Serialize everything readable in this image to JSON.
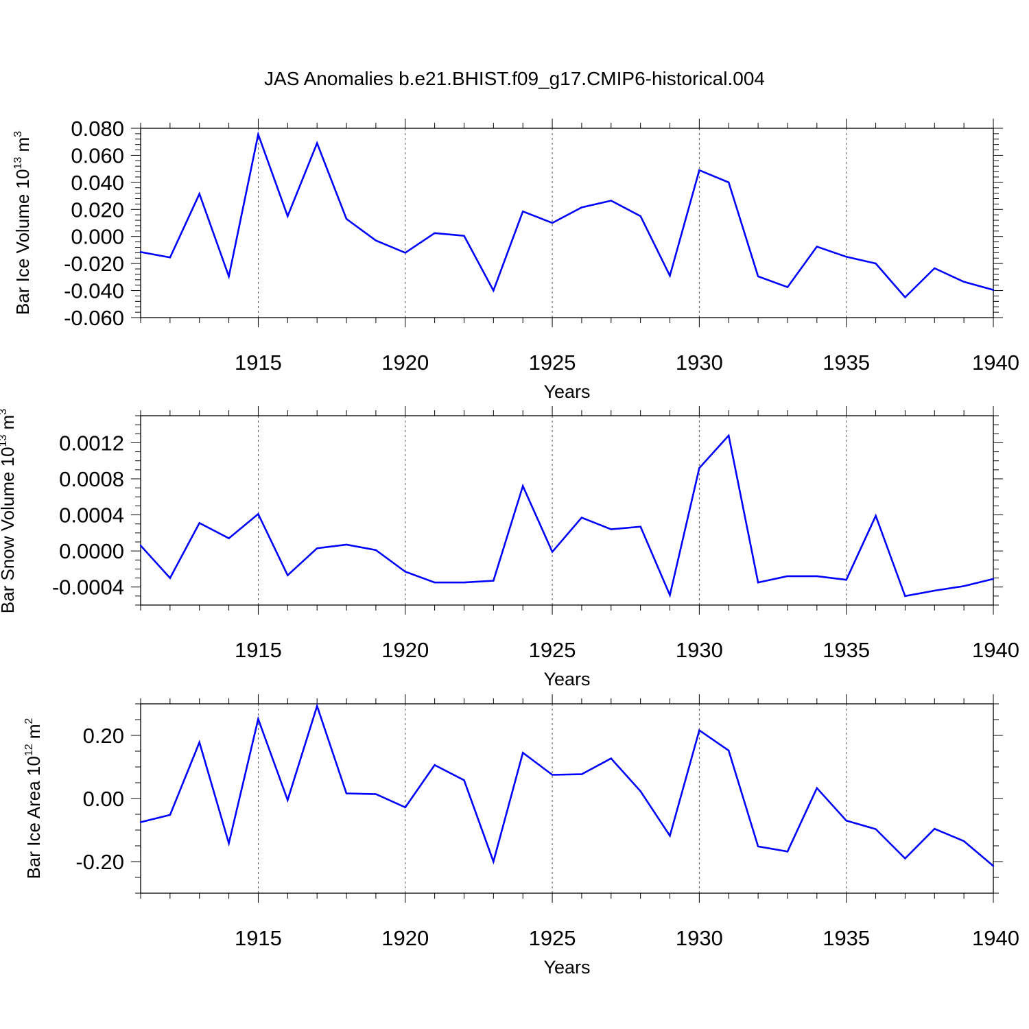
{
  "chart_data": [
    {
      "type": "line",
      "title": "JAS Anomalies b.e21.BHIST.f09_g17.CMIP6-historical.004",
      "xlabel": "Years",
      "ylabel": "Bar Ice Volume 10",
      "ylabel_sup1": "13",
      "ylabel_unit": " m",
      "ylabel_sup2": "3",
      "xlim": [
        1911,
        1940
      ],
      "ylim": [
        -0.06,
        0.08
      ],
      "yticks": [
        -0.06,
        -0.04,
        -0.02,
        0.0,
        0.02,
        0.04,
        0.06,
        0.08
      ],
      "ytick_labels": [
        "-0.060",
        "-0.040",
        "-0.020",
        "0.000",
        "0.020",
        "0.040",
        "0.060",
        "0.080"
      ],
      "yminor": 0.004,
      "xticks": [
        1915,
        1920,
        1925,
        1930,
        1935,
        1940
      ],
      "xtick_labels": [
        "1915",
        "1920",
        "1925",
        "1930",
        "1935",
        "1940"
      ],
      "grid": "dashed vertical at major x ticks",
      "color": "#0000ff",
      "x": [
        1911,
        1912,
        1913,
        1914,
        1915,
        1916,
        1917,
        1918,
        1919,
        1920,
        1921,
        1922,
        1923,
        1924,
        1925,
        1926,
        1927,
        1928,
        1929,
        1930,
        1931,
        1932,
        1933,
        1934,
        1935,
        1936,
        1937,
        1938,
        1939,
        1940
      ],
      "values": [
        -0.0115,
        -0.0155,
        0.0315,
        -0.0295,
        0.0755,
        0.015,
        0.069,
        0.013,
        -0.003,
        -0.012,
        0.0025,
        0.0005,
        -0.04,
        0.0185,
        0.01,
        0.0215,
        0.0265,
        0.015,
        -0.029,
        0.049,
        0.04,
        -0.0295,
        -0.0375,
        -0.0075,
        -0.015,
        -0.02,
        -0.045,
        -0.0235,
        -0.0335,
        -0.0395
      ]
    },
    {
      "type": "line",
      "xlabel": "Years",
      "ylabel": "Bar Snow Volume 10",
      "ylabel_sup1": "13",
      "ylabel_unit": " m",
      "ylabel_sup2": "3",
      "xlim": [
        1911,
        1940
      ],
      "ylim": [
        -0.0006,
        0.0015
      ],
      "yticks": [
        -0.0004,
        0.0,
        0.0004,
        0.0008,
        0.0012
      ],
      "ytick_labels": [
        "-0.0004",
        "0.0000",
        "0.0004",
        "0.0008",
        "0.0012"
      ],
      "yminor": 0.0001,
      "xticks": [
        1915,
        1920,
        1925,
        1930,
        1935,
        1940
      ],
      "xtick_labels": [
        "1915",
        "1920",
        "1925",
        "1930",
        "1935",
        "1940"
      ],
      "grid": "dashed vertical at major x ticks",
      "color": "#0000ff",
      "x": [
        1911,
        1912,
        1913,
        1914,
        1915,
        1916,
        1917,
        1918,
        1919,
        1920,
        1921,
        1922,
        1923,
        1924,
        1925,
        1926,
        1927,
        1928,
        1929,
        1930,
        1931,
        1932,
        1933,
        1934,
        1935,
        1936,
        1937,
        1938,
        1939,
        1940
      ],
      "values": [
        6e-05,
        -0.0003,
        0.00031,
        0.00014,
        0.00041,
        -0.00027,
        3e-05,
        7e-05,
        1e-05,
        -0.00023,
        -0.00035,
        -0.00035,
        -0.00033,
        0.00072,
        -1e-05,
        0.00037,
        0.00024,
        0.00027,
        -0.00049,
        0.00092,
        0.00128,
        -0.00035,
        -0.00028,
        -0.00028,
        -0.00032,
        0.00039,
        -0.0005,
        -0.00044,
        -0.00039,
        -0.00031
      ]
    },
    {
      "type": "line",
      "xlabel": "Years",
      "ylabel": "Bar Ice Area 10",
      "ylabel_sup1": "12",
      "ylabel_unit": " m",
      "ylabel_sup2": "2",
      "xlim": [
        1911,
        1940
      ],
      "ylim": [
        -0.3,
        0.3
      ],
      "yticks": [
        -0.2,
        0.0,
        0.2
      ],
      "ytick_labels": [
        "-0.20",
        "0.00",
        "0.20"
      ],
      "yminor": 0.05,
      "xticks": [
        1915,
        1920,
        1925,
        1930,
        1935,
        1940
      ],
      "xtick_labels": [
        "1915",
        "1920",
        "1925",
        "1930",
        "1935",
        "1940"
      ],
      "grid": "dashed vertical at major x ticks",
      "color": "#0000ff",
      "x": [
        1911,
        1912,
        1913,
        1914,
        1915,
        1916,
        1917,
        1918,
        1919,
        1920,
        1921,
        1922,
        1923,
        1924,
        1925,
        1926,
        1927,
        1928,
        1929,
        1930,
        1931,
        1932,
        1933,
        1934,
        1935,
        1936,
        1937,
        1938,
        1939,
        1940
      ],
      "values": [
        -0.075,
        -0.052,
        0.178,
        -0.142,
        0.252,
        -0.005,
        0.293,
        0.016,
        0.014,
        -0.028,
        0.106,
        0.058,
        -0.2,
        0.145,
        0.075,
        0.077,
        0.127,
        0.023,
        -0.118,
        0.216,
        0.152,
        -0.152,
        -0.168,
        0.033,
        -0.07,
        -0.097,
        -0.19,
        -0.096,
        -0.135,
        -0.214
      ]
    }
  ]
}
